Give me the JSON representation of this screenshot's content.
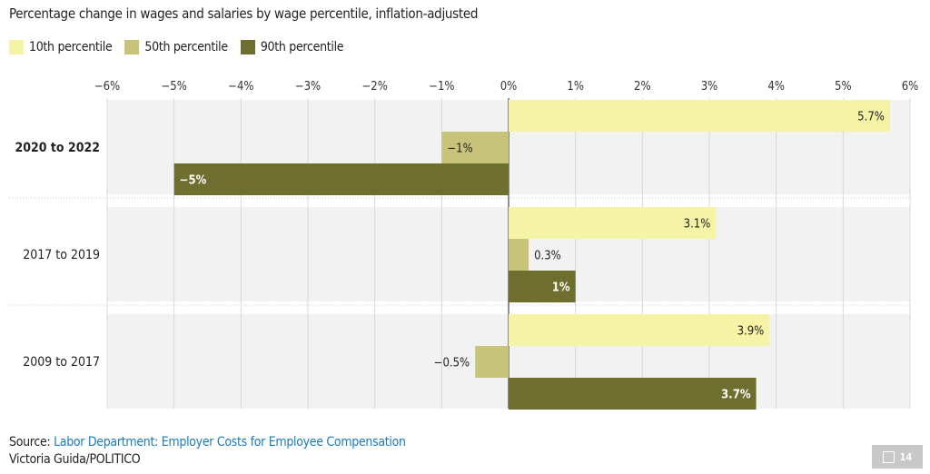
{
  "title": "Percentage change in wages and salaries by wage percentile, inflation-adjusted",
  "source_prefix": "Source: ",
  "source_link": "Labor Department: Employer Costs for Employee Compensation",
  "credit": "Victoria Guida/POLITICO",
  "badge": {
    "icon": "image-icon",
    "count": "14"
  },
  "chart_data": {
    "type": "bar",
    "orientation": "horizontal",
    "title": "Percentage change in wages and salaries by wage percentile, inflation-adjusted",
    "categories": [
      "2020 to 2022",
      "2017 to 2019",
      "2009 to 2017"
    ],
    "highlighted_category": "2020 to 2022",
    "series": [
      {
        "name": "10th percentile",
        "color": "#f5f3a6",
        "values": [
          5.7,
          3.1,
          3.9
        ],
        "labels": [
          "5.7%",
          "3.1%",
          "3.9%"
        ]
      },
      {
        "name": "50th percentile",
        "color": "#c7c47a",
        "values": [
          -1,
          0.3,
          -0.5
        ],
        "labels": [
          "−1%",
          "0.3%",
          "−0.5%"
        ]
      },
      {
        "name": "90th percentile",
        "color": "#6e6e2f",
        "values": [
          -5,
          1,
          3.7
        ],
        "labels": [
          "−5%",
          "1%",
          "3.7%"
        ]
      }
    ],
    "xlim": [
      -6,
      6
    ],
    "ticks": [
      "−6%",
      "−5%",
      "−4%",
      "−3%",
      "−2%",
      "−1%",
      "0%",
      "1%",
      "2%",
      "3%",
      "4%",
      "5%",
      "6%"
    ],
    "tick_values": [
      -6,
      -5,
      -4,
      -3,
      -2,
      -1,
      0,
      1,
      2,
      3,
      4,
      5,
      6
    ],
    "grid": true,
    "legend": "top-left"
  }
}
